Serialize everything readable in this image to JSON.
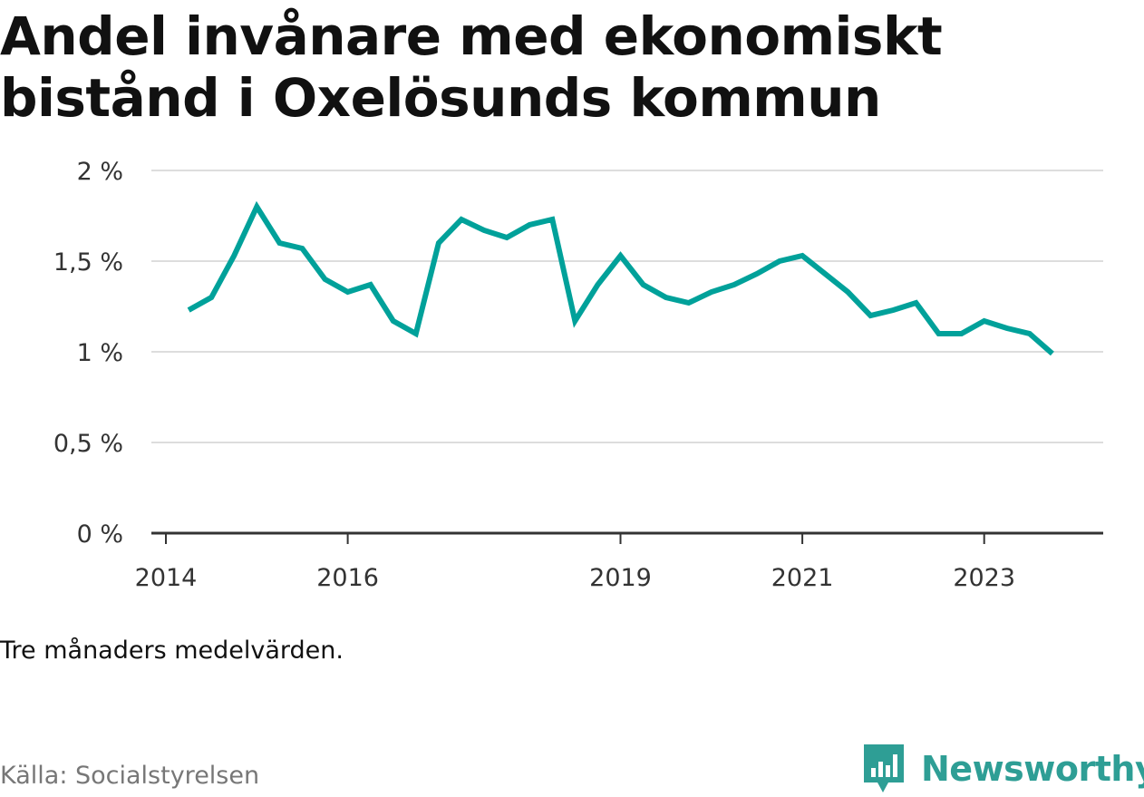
{
  "chart_data": {
    "type": "line",
    "title": "Andel invånare med ekonomiskt bistånd i Oxelösunds kommun",
    "xlabel": "",
    "ylabel": "",
    "y_ticks": [
      0,
      0.5,
      1,
      1.5,
      2
    ],
    "y_tick_labels": [
      "0 %",
      "0,5 %",
      "1 %",
      "1,5 %",
      "2 %"
    ],
    "ylim": [
      0,
      2
    ],
    "x_ticks": [
      "2014",
      "2016",
      "2019",
      "2021",
      "2023"
    ],
    "grid": true,
    "legend": "none",
    "color": "#00a19a",
    "series": [
      {
        "x": [
          "2014-04",
          "2014-07",
          "2014-10",
          "2015-01",
          "2015-04",
          "2015-07",
          "2015-10",
          "2016-01",
          "2016-04",
          "2016-07",
          "2016-10",
          "2017-01",
          "2017-04",
          "2017-07",
          "2017-10",
          "2018-01",
          "2018-04",
          "2018-07",
          "2018-10",
          "2019-01",
          "2019-04",
          "2019-07",
          "2019-10",
          "2020-01",
          "2020-04",
          "2020-07",
          "2020-10",
          "2021-01",
          "2021-04",
          "2021-07",
          "2021-10",
          "2022-01",
          "2022-04",
          "2022-07",
          "2022-10",
          "2023-01",
          "2023-04",
          "2023-07",
          "2023-10"
        ],
        "values": [
          1.23,
          1.3,
          1.53,
          1.8,
          1.6,
          1.57,
          1.4,
          1.33,
          1.37,
          1.17,
          1.1,
          1.6,
          1.73,
          1.67,
          1.63,
          1.7,
          1.73,
          1.17,
          1.37,
          1.53,
          1.37,
          1.3,
          1.27,
          1.33,
          1.37,
          1.43,
          1.5,
          1.53,
          1.43,
          1.33,
          1.2,
          1.23,
          1.27,
          1.1,
          1.1,
          1.17,
          1.13,
          1.1,
          0.99
        ]
      }
    ]
  },
  "note": "Tre månaders medelvärden.",
  "source": "Källa: Socialstyrelsen",
  "brand": "Newsworthy",
  "brand_icon": "newsworthy-chart-icon",
  "brand_color": "#2e9e95"
}
